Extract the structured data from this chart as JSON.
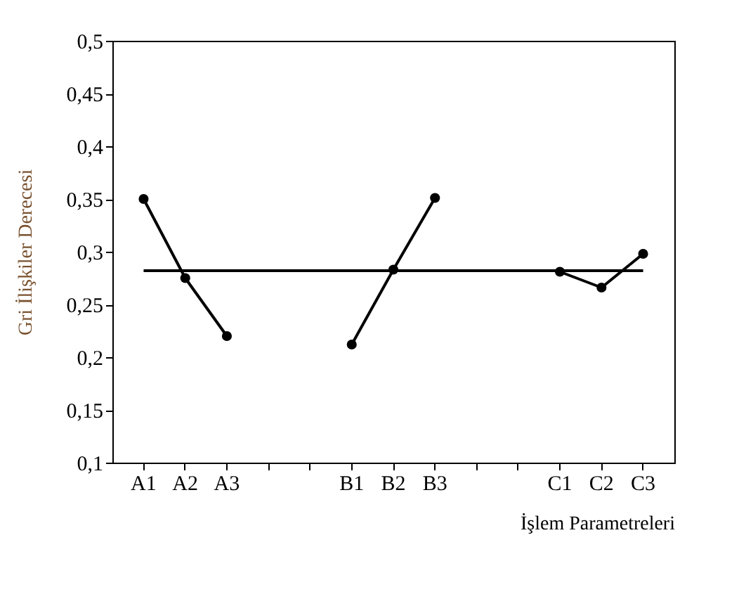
{
  "chart_data": {
    "type": "line",
    "xlabel": "İşlem Parametreleri",
    "ylabel": "Gri İlişkiler Derecesi",
    "categories": [
      "A1",
      "A2",
      "A3",
      null,
      null,
      "B1",
      "B2",
      "B3",
      null,
      null,
      "C1",
      "C2",
      "C3"
    ],
    "series": [
      {
        "color": "#000000",
        "values": [
          0.35,
          0.275,
          0.22,
          null,
          null,
          null,
          null,
          null,
          null,
          null,
          null,
          null,
          null
        ]
      },
      {
        "color": "#000000",
        "values": [
          null,
          null,
          null,
          null,
          null,
          0.212,
          0.283,
          0.351,
          null,
          null,
          null,
          null,
          null
        ]
      },
      {
        "color": "#000000",
        "values": [
          null,
          null,
          null,
          null,
          null,
          null,
          null,
          null,
          null,
          null,
          0.281,
          0.266,
          0.298
        ]
      }
    ],
    "ylim": [
      0.1,
      0.5
    ],
    "yticks": [
      {
        "value": 0.1,
        "label": "0,1"
      },
      {
        "value": 0.15,
        "label": "0,15"
      },
      {
        "value": 0.2,
        "label": "0,2"
      },
      {
        "value": 0.25,
        "label": "0,25"
      },
      {
        "value": 0.3,
        "label": "0,3"
      },
      {
        "value": 0.35,
        "label": "0,35"
      },
      {
        "value": 0.4,
        "label": "0,4"
      },
      {
        "value": 0.45,
        "label": "0,45"
      },
      {
        "value": 0.5,
        "label": "0,5"
      }
    ],
    "ref_lines": [
      {
        "axis": "y",
        "value": 0.282,
        "color": "#000000",
        "line_style": "solid"
      }
    ],
    "marker": "circle",
    "line_style": "solid",
    "grid": false
  }
}
